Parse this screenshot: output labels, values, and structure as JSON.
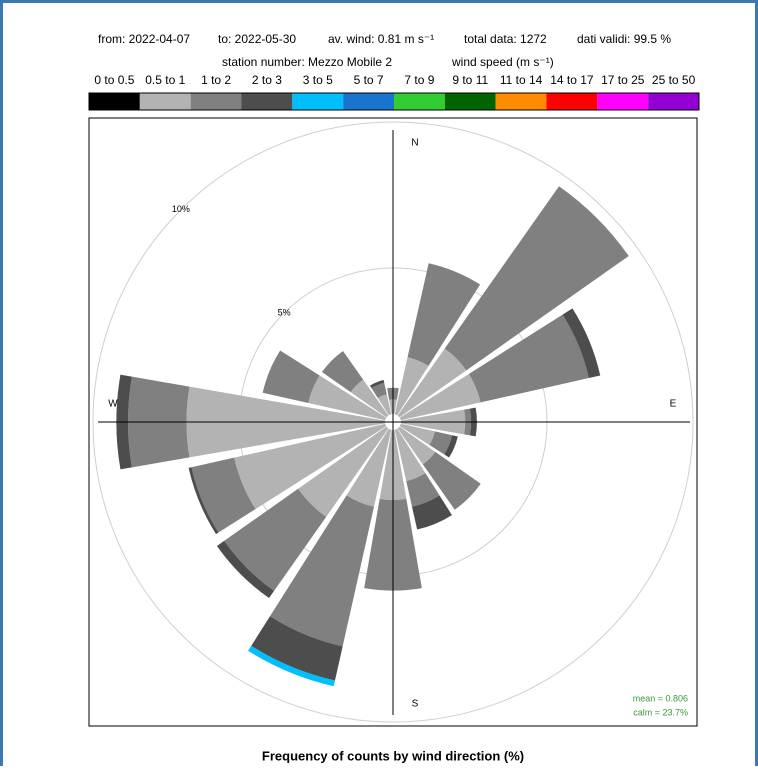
{
  "chart_data": {
    "type": "windrose",
    "header": [
      "from: 2022-04-07",
      "to: 2022-05-30",
      "av. wind:  0.81 m s⁻¹",
      "total data: 1272",
      "dati validi: 99.5 %"
    ],
    "subheader": [
      "station number:  Mezzo Mobile 2",
      "wind speed (m s⁻¹)"
    ],
    "title": "Frequency of counts by wind direction (%)",
    "compass": [
      "N",
      "E",
      "S",
      "W"
    ],
    "annotations": [
      "mean = 0.806",
      "calm = 23.7%"
    ],
    "directions": [
      0,
      22.5,
      45,
      67.5,
      90,
      112.5,
      135,
      157.5,
      180,
      202.5,
      225,
      247.5,
      270,
      292.5,
      315,
      337.5
    ],
    "rlim": [
      0,
      10
    ],
    "rticks": [
      {
        "value": 5,
        "label": "5%"
      },
      {
        "value": 10,
        "label": "10%"
      }
    ],
    "series": [
      {
        "name": "0 to 0.5",
        "color": "#000000",
        "values": [
          0,
          0,
          0,
          0,
          0,
          0,
          0,
          0,
          0,
          0,
          0,
          0,
          0,
          0,
          0,
          0
        ]
      },
      {
        "name": "0.5 to 1",
        "color": "#b3b3b3",
        "values": [
          0.5,
          2.0,
          2.8,
          2.8,
          2.2,
          1.2,
          1.5,
          1.8,
          2.4,
          2.7,
          3.7,
          5.3,
          6.8,
          2.7,
          1.5,
          0.7
        ]
      },
      {
        "name": "1 to 2",
        "color": "#808080",
        "values": [
          0.4,
          3.3,
          6.8,
          3.8,
          0.2,
          0.6,
          1.9,
          0.9,
          3.1,
          4.9,
          3.1,
          1.5,
          2.0,
          1.6,
          1.2,
          0.4
        ]
      },
      {
        "name": "2 to 3",
        "color": "#4d4d4d",
        "values": [
          0,
          0,
          0,
          0.4,
          0.2,
          0.2,
          0,
          0.8,
          0,
          1.2,
          0.3,
          0.1,
          0.4,
          0,
          0,
          0.1
        ]
      },
      {
        "name": "3 to 5",
        "color": "#00bfff",
        "values": [
          0,
          0,
          0,
          0,
          0,
          0,
          0,
          0,
          0,
          0.2,
          0,
          0,
          0,
          0,
          0,
          0
        ]
      },
      {
        "name": "5 to 7",
        "color": "#1874cd",
        "values": [
          0,
          0,
          0,
          0,
          0,
          0,
          0,
          0,
          0,
          0,
          0,
          0,
          0,
          0,
          0,
          0
        ]
      },
      {
        "name": "7 to 9",
        "color": "#32cd32",
        "values": [
          0,
          0,
          0,
          0,
          0,
          0,
          0,
          0,
          0,
          0,
          0,
          0,
          0,
          0,
          0,
          0
        ]
      },
      {
        "name": "9 to 11",
        "color": "#006400",
        "values": [
          0,
          0,
          0,
          0,
          0,
          0,
          0,
          0,
          0,
          0,
          0,
          0,
          0,
          0,
          0,
          0
        ]
      },
      {
        "name": "11 to 14",
        "color": "#ff8c00",
        "values": [
          0,
          0,
          0,
          0,
          0,
          0,
          0,
          0,
          0,
          0,
          0,
          0,
          0,
          0,
          0,
          0
        ]
      },
      {
        "name": "14 to 17",
        "color": "#ff0000",
        "values": [
          0,
          0,
          0,
          0,
          0,
          0,
          0,
          0,
          0,
          0,
          0,
          0,
          0,
          0,
          0,
          0
        ]
      },
      {
        "name": "17 to 25",
        "color": "#ff00ff",
        "values": [
          0,
          0,
          0,
          0,
          0,
          0,
          0,
          0,
          0,
          0,
          0,
          0,
          0,
          0,
          0,
          0
        ]
      },
      {
        "name": "25 to 50",
        "color": "#9400d3",
        "values": [
          0,
          0,
          0,
          0,
          0,
          0,
          0,
          0,
          0,
          0,
          0,
          0,
          0,
          0,
          0,
          0
        ]
      }
    ]
  }
}
